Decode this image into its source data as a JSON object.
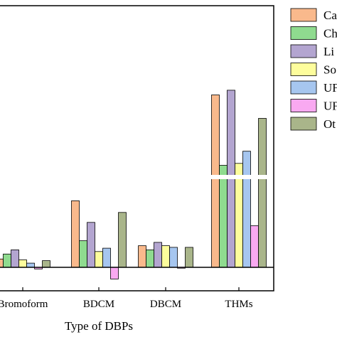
{
  "chart_data": {
    "type": "bar",
    "xlabel": "Type of DBPs",
    "categories": [
      "Bromoform",
      "BDCM",
      "DBCM",
      "THMs"
    ],
    "axis_break": true,
    "legend_position": "right",
    "series": [
      {
        "name": "Ca",
        "color": "#f9b98c",
        "values": [
          1.0,
          8.0,
          2.6,
          30.0
        ]
      },
      {
        "name": "Ch",
        "color": "#8fdb8f",
        "values": [
          1.6,
          3.2,
          2.1,
          15.0
        ]
      },
      {
        "name": "Li",
        "color": "#b3a5d0",
        "values": [
          2.1,
          5.4,
          3.0,
          31.0
        ]
      },
      {
        "name": "So",
        "color": "#fdfd9c",
        "values": [
          0.9,
          1.9,
          2.6,
          12.5
        ]
      },
      {
        "name": "UF",
        "color": "#a6c6ef",
        "values": [
          0.5,
          2.3,
          2.4,
          18.0
        ]
      },
      {
        "name": "UF",
        "color": "#f9a9f1",
        "values": [
          -0.2,
          -1.4,
          -0.1,
          5.0
        ]
      },
      {
        "name": "Ot",
        "color": "#a9b58a",
        "values": [
          0.8,
          6.6,
          2.4,
          25.0
        ]
      }
    ]
  }
}
